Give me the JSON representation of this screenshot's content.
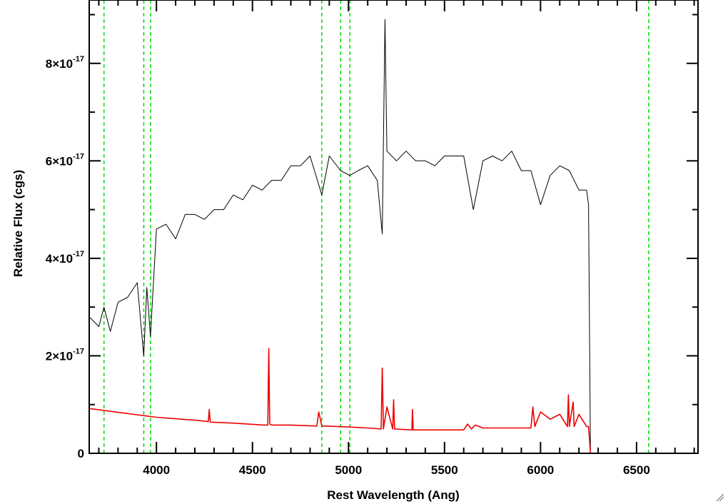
{
  "chart_data": {
    "type": "line",
    "xlabel": "Rest Wavelength (Ang)",
    "ylabel": "Relative Flux (cgs)",
    "xlim": [
      3650,
      6820
    ],
    "ylim": [
      0,
      9.3e-17
    ],
    "x_ticks": [
      4000,
      4500,
      5000,
      5500,
      6000,
      6500
    ],
    "x_tick_labels": [
      "4000",
      "4500",
      "5000",
      "5500",
      "6000",
      "6500"
    ],
    "y_ticks": [
      0,
      2e-17,
      4e-17,
      6e-17,
      8e-17
    ],
    "y_tick_labels": [
      {
        "mantissa": "0",
        "exponent": ""
      },
      {
        "mantissa": "2×10",
        "exponent": "-17"
      },
      {
        "mantissa": "4×10",
        "exponent": "-17"
      },
      {
        "mantissa": "6×10",
        "exponent": "-17"
      },
      {
        "mantissa": "8×10",
        "exponent": "-17"
      }
    ],
    "reference_lines": {
      "color": "#00dd00",
      "style": "dashed",
      "x": [
        3727,
        3934,
        3969,
        4861,
        4959,
        5007,
        6563
      ]
    },
    "series": [
      {
        "color": "#000000",
        "x": [
          3650,
          3700,
          3727,
          3760,
          3800,
          3850,
          3900,
          3934,
          3950,
          3969,
          4000,
          4050,
          4100,
          4150,
          4200,
          4250,
          4300,
          4350,
          4400,
          4450,
          4500,
          4550,
          4600,
          4650,
          4700,
          4750,
          4800,
          4861,
          4900,
          4959,
          5007,
          5050,
          5100,
          5150,
          5176,
          5190,
          5200,
          5250,
          5300,
          5350,
          5400,
          5450,
          5500,
          5550,
          5600,
          5650,
          5700,
          5750,
          5800,
          5850,
          5900,
          5950,
          6000,
          6050,
          6100,
          6150,
          6200,
          6240,
          6250,
          6260,
          6820
        ],
        "y": [
          2.8e-17,
          2.6e-17,
          3e-17,
          2.5e-17,
          3.1e-17,
          3.2e-17,
          3.5e-17,
          2e-17,
          3.4e-17,
          2.4e-17,
          4.6e-17,
          4.7e-17,
          4.4e-17,
          4.9e-17,
          4.9e-17,
          4.8e-17,
          5e-17,
          5e-17,
          5.3e-17,
          5.2e-17,
          5.5e-17,
          5.4e-17,
          5.6e-17,
          5.6e-17,
          5.9e-17,
          5.9e-17,
          6.1e-17,
          5.3e-17,
          6.1e-17,
          5.8e-17,
          5.7e-17,
          5.8e-17,
          5.9e-17,
          5.6e-17,
          4.5e-17,
          8.9e-17,
          6.2e-17,
          6e-17,
          6.2e-17,
          6e-17,
          6e-17,
          5.9e-17,
          6.1e-17,
          6.1e-17,
          6.1e-17,
          5e-17,
          6e-17,
          6.1e-17,
          6e-17,
          6.2e-17,
          5.8e-17,
          5.8e-17,
          5.1e-17,
          5.7e-17,
          5.9e-17,
          5.8e-17,
          5.4e-17,
          5.4e-17,
          5.1e-17,
          0,
          0
        ]
      },
      {
        "color": "#ee0000",
        "x": [
          3650,
          3800,
          4000,
          4200,
          4270,
          4275,
          4280,
          4400,
          4560,
          4580,
          4585,
          4590,
          4600,
          4700,
          4835,
          4845,
          4861,
          4880,
          5000,
          5100,
          5170,
          5176,
          5182,
          5200,
          5230,
          5235,
          5240,
          5330,
          5333,
          5337,
          5400,
          5500,
          5600,
          5620,
          5640,
          5660,
          5700,
          5800,
          5900,
          5950,
          5960,
          5970,
          6000,
          6050,
          6100,
          6140,
          6145,
          6150,
          6170,
          6175,
          6200,
          6240,
          6250,
          6260,
          6820
        ],
        "y": [
          9.2e-18,
          8.4e-18,
          7.4e-18,
          6.8e-18,
          6.5e-18,
          9e-18,
          6.4e-18,
          6.2e-18,
          5.8e-18,
          5.8e-18,
          2.15e-17,
          6e-18,
          5.8e-18,
          5.8e-18,
          5.6e-18,
          8.5e-18,
          5.6e-18,
          5.6e-18,
          5.4e-18,
          5.2e-18,
          5e-18,
          1.75e-17,
          5e-18,
          9.5e-18,
          5e-18,
          1.1e-17,
          5e-18,
          4.8e-18,
          9e-18,
          4.8e-18,
          4.8e-18,
          4.8e-18,
          4.8e-18,
          6e-18,
          5e-18,
          5.8e-18,
          5.2e-18,
          5.2e-18,
          5.2e-18,
          5.2e-18,
          9.5e-18,
          5.5e-18,
          8.5e-18,
          7e-18,
          8e-18,
          5.5e-18,
          1.2e-17,
          5.5e-18,
          1.05e-17,
          5.5e-18,
          8e-18,
          5.5e-18,
          5.5e-18,
          0,
          0
        ]
      }
    ]
  }
}
